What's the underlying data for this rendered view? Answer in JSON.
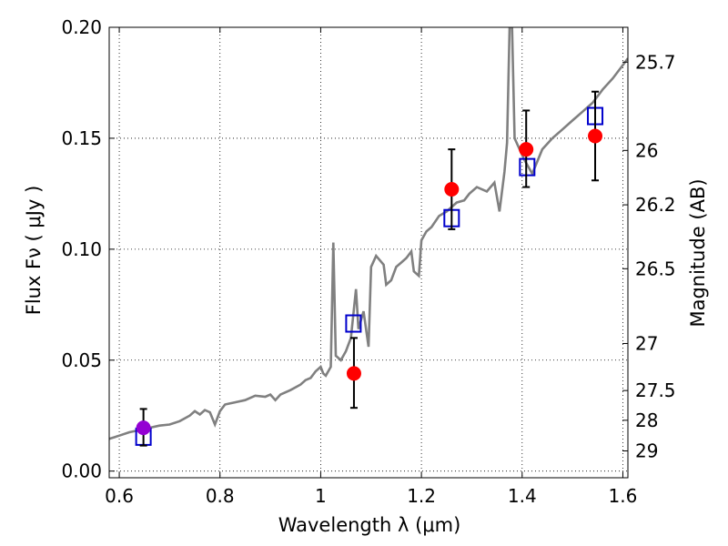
{
  "chart_data": {
    "type": "line",
    "xlabel": "Wavelength  λ (μm)",
    "ylabel": "Flux  Fν  ( μJy )",
    "y2label": "Magnitude (AB)",
    "xlim": [
      0.58,
      1.61
    ],
    "ylim": [
      -0.003,
      0.2
    ],
    "grid": true,
    "x_ticks": [
      0.6,
      0.8,
      1.0,
      1.2,
      1.4,
      1.6
    ],
    "x_tick_labels": [
      "0.6",
      "0.8",
      "1",
      "1.2",
      "1.4",
      "1.6"
    ],
    "y_ticks": [
      0.0,
      0.05,
      0.1,
      0.15,
      0.2
    ],
    "y_tick_labels": [
      "0.00",
      "0.05",
      "0.10",
      "0.15",
      "0.20"
    ],
    "mag_ticks": [
      {
        "flux": 0.1843,
        "label": "25.7"
      },
      {
        "flux": 0.1445,
        "label": "26"
      },
      {
        "flux": 0.12,
        "label": "26.2"
      },
      {
        "flux": 0.0912,
        "label": "26.5"
      },
      {
        "flux": 0.0575,
        "label": "27"
      },
      {
        "flux": 0.0363,
        "label": "27.5"
      },
      {
        "flux": 0.0229,
        "label": "28"
      },
      {
        "flux": 0.0091,
        "label": "29"
      }
    ],
    "series": [
      {
        "role": "model-spectrum",
        "color": "#808080",
        "points": [
          [
            0.58,
            0.0145
          ],
          [
            0.6,
            0.016
          ],
          [
            0.62,
            0.0175
          ],
          [
            0.64,
            0.0185
          ],
          [
            0.66,
            0.0195
          ],
          [
            0.68,
            0.0205
          ],
          [
            0.7,
            0.021
          ],
          [
            0.72,
            0.0225
          ],
          [
            0.74,
            0.025
          ],
          [
            0.75,
            0.027
          ],
          [
            0.76,
            0.0255
          ],
          [
            0.77,
            0.0275
          ],
          [
            0.78,
            0.0265
          ],
          [
            0.79,
            0.021
          ],
          [
            0.8,
            0.027
          ],
          [
            0.81,
            0.03
          ],
          [
            0.83,
            0.031
          ],
          [
            0.85,
            0.032
          ],
          [
            0.87,
            0.034
          ],
          [
            0.89,
            0.0335
          ],
          [
            0.9,
            0.0345
          ],
          [
            0.91,
            0.032
          ],
          [
            0.92,
            0.0345
          ],
          [
            0.94,
            0.0365
          ],
          [
            0.96,
            0.039
          ],
          [
            0.97,
            0.041
          ],
          [
            0.98,
            0.042
          ],
          [
            0.99,
            0.045
          ],
          [
            1.0,
            0.047
          ],
          [
            1.005,
            0.044
          ],
          [
            1.01,
            0.043
          ],
          [
            1.02,
            0.047
          ],
          [
            1.025,
            0.103
          ],
          [
            1.03,
            0.052
          ],
          [
            1.04,
            0.05
          ],
          [
            1.05,
            0.054
          ],
          [
            1.06,
            0.06
          ],
          [
            1.07,
            0.082
          ],
          [
            1.075,
            0.064
          ],
          [
            1.085,
            0.072
          ],
          [
            1.095,
            0.056
          ],
          [
            1.1,
            0.092
          ],
          [
            1.11,
            0.097
          ],
          [
            1.125,
            0.093
          ],
          [
            1.13,
            0.084
          ],
          [
            1.14,
            0.086
          ],
          [
            1.15,
            0.092
          ],
          [
            1.16,
            0.094
          ],
          [
            1.17,
            0.096
          ],
          [
            1.18,
            0.099
          ],
          [
            1.185,
            0.09
          ],
          [
            1.195,
            0.088
          ],
          [
            1.2,
            0.104
          ],
          [
            1.21,
            0.108
          ],
          [
            1.22,
            0.11
          ],
          [
            1.235,
            0.115
          ],
          [
            1.25,
            0.117
          ],
          [
            1.26,
            0.119
          ],
          [
            1.27,
            0.121
          ],
          [
            1.285,
            0.122
          ],
          [
            1.295,
            0.125
          ],
          [
            1.31,
            0.128
          ],
          [
            1.33,
            0.126
          ],
          [
            1.345,
            0.13
          ],
          [
            1.355,
            0.117
          ],
          [
            1.365,
            0.135
          ],
          [
            1.37,
            0.148
          ],
          [
            1.375,
            0.2
          ],
          [
            1.38,
            0.2
          ],
          [
            1.385,
            0.15
          ],
          [
            1.395,
            0.145
          ],
          [
            1.405,
            0.14
          ],
          [
            1.42,
            0.134
          ],
          [
            1.44,
            0.145
          ],
          [
            1.46,
            0.15
          ],
          [
            1.48,
            0.154
          ],
          [
            1.5,
            0.158
          ],
          [
            1.52,
            0.162
          ],
          [
            1.54,
            0.166
          ],
          [
            1.56,
            0.172
          ],
          [
            1.58,
            0.177
          ],
          [
            1.6,
            0.183
          ],
          [
            1.61,
            0.186
          ]
        ]
      },
      {
        "role": "model-photometry",
        "marker": "open-square",
        "color": "#0000cc",
        "points": [
          [
            0.648,
            0.0155
          ],
          [
            1.065,
            0.0665
          ],
          [
            1.26,
            0.114
          ],
          [
            1.41,
            0.137
          ],
          [
            1.545,
            0.16
          ]
        ]
      },
      {
        "role": "observed-photometry",
        "marker": "filled-circle",
        "color": "#ff0000",
        "points": [
          {
            "x": 1.066,
            "y": 0.044,
            "lo": 0.0285,
            "hi": 0.06
          },
          {
            "x": 1.26,
            "y": 0.127,
            "lo": 0.109,
            "hi": 0.145
          },
          {
            "x": 1.408,
            "y": 0.145,
            "lo": 0.128,
            "hi": 0.1625
          },
          {
            "x": 1.545,
            "y": 0.151,
            "lo": 0.131,
            "hi": 0.171
          }
        ]
      },
      {
        "role": "optical-point",
        "marker": "filled-circle",
        "color": "#9400d3",
        "points": [
          {
            "x": 0.648,
            "y": 0.0195,
            "lo": 0.0115,
            "hi": 0.028
          }
        ]
      }
    ]
  }
}
